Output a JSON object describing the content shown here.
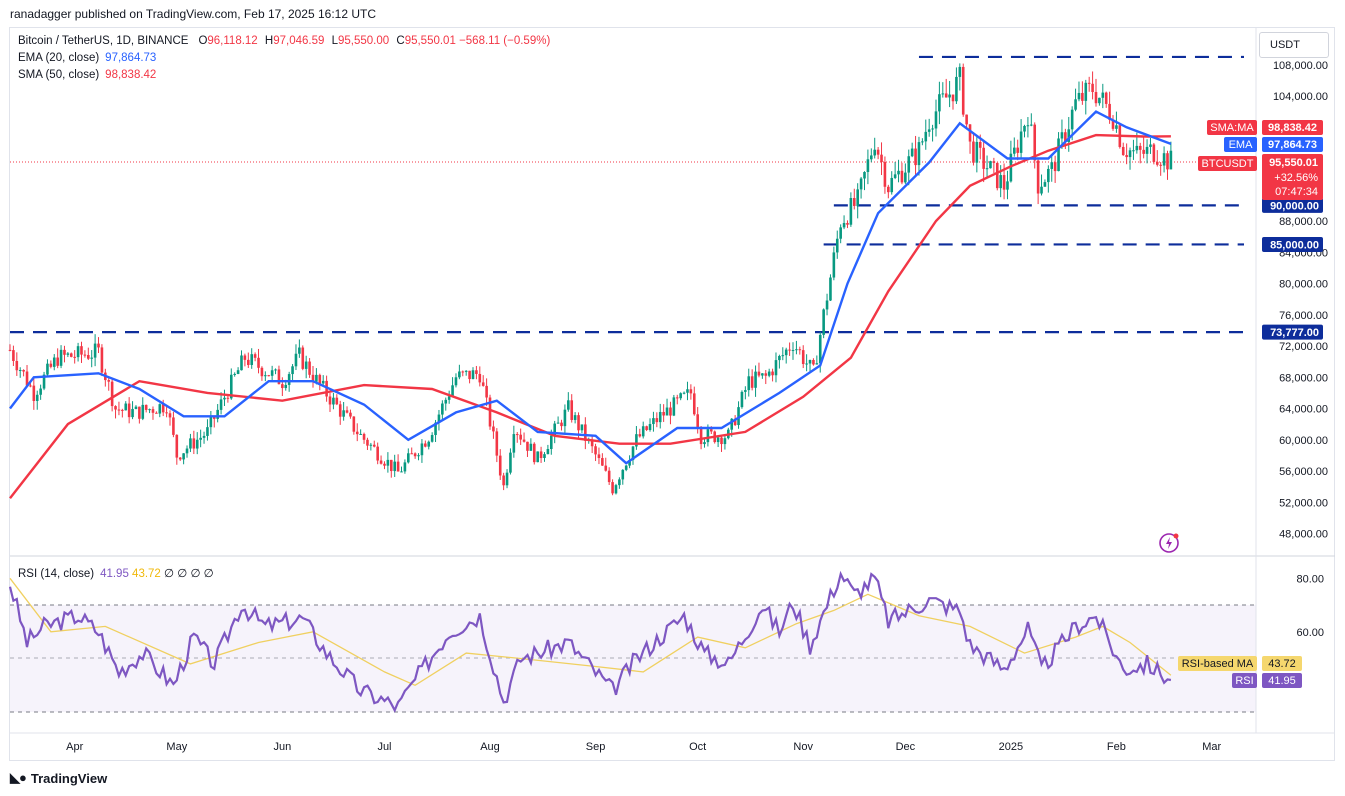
{
  "publisher": "ranadagger published on TradingView.com, Feb 17, 2025 16:12 UTC",
  "currency_button": "USDT",
  "legend": {
    "symbol": "Bitcoin / TetherUS, 1D, BINANCE",
    "o_key": "O",
    "o_val": "96,118.12",
    "h_key": "H",
    "h_val": "97,046.59",
    "l_key": "L",
    "l_val": "95,550.00",
    "c_key": "C",
    "c_val": "95,550.01",
    "change": "−568.11 (−0.59%)",
    "ema_label": "EMA (20, close)",
    "ema_val": "97,864.73",
    "sma_label": "SMA (50, close)",
    "sma_val": "98,838.42",
    "rsi_label": "RSI (14, close)",
    "rsi_val": "41.95",
    "rsi_ma_val": "43.72",
    "rsi_extra": "∅ ∅ ∅ ∅"
  },
  "colors": {
    "up": "#089981",
    "down": "#f23645",
    "ema": "#2962ff",
    "sma": "#f23645",
    "level": "#0d2d9b",
    "rsi": "#7e57c2",
    "rsi_ma": "#f0d060"
  },
  "price_axis": {
    "ticks": [
      "108,000.00",
      "104,000.00",
      "88,000.00",
      "84,000.00",
      "80,000.00",
      "76,000.00",
      "72,000.00",
      "68,000.00",
      "64,000.00",
      "60,000.00",
      "56,000.00",
      "52,000.00",
      "48,000.00"
    ],
    "tick_values": [
      108000,
      104000,
      88000,
      84000,
      80000,
      76000,
      72000,
      68000,
      64000,
      60000,
      56000,
      52000,
      48000
    ]
  },
  "level_labels": [
    {
      "value": 90000,
      "text": "90,000.00"
    },
    {
      "value": 85000,
      "text": "85,000.00"
    },
    {
      "value": 73777,
      "text": "73,777.00"
    }
  ],
  "top_level": 109000,
  "price_tags": {
    "sma_name": "SMA:MA",
    "sma_value": "98,838.42",
    "ema_name": "EMA",
    "ema_value": "97,864.73",
    "symbol_name": "BTCUSDT",
    "last": "95,550.01",
    "pct": "+32.56%",
    "countdown": "07:47:34"
  },
  "rsi_axis": {
    "ticks": [
      "80.00",
      "60.00"
    ],
    "tick_values": [
      80,
      60
    ]
  },
  "rsi_tags": {
    "ma_name": "RSI-based MA",
    "ma_value": "43.72",
    "rsi_name": "RSI",
    "rsi_value": "41.95"
  },
  "time_axis": [
    "Apr",
    "May",
    "Jun",
    "Jul",
    "Aug",
    "Sep",
    "Oct",
    "Nov",
    "Dec",
    "2025",
    "Feb",
    "Mar"
  ],
  "brand": "TradingView",
  "chart_data": {
    "type": "candlestick",
    "title": "Bitcoin / TetherUS, 1D, BINANCE",
    "x_range": [
      "2024-03-13",
      "2025-03-14"
    ],
    "ylim": [
      46000,
      110500
    ],
    "anchors": [
      [
        "2024-03-13",
        71500
      ],
      [
        "2024-03-20",
        66000
      ],
      [
        "2024-03-27",
        70500
      ],
      [
        "2024-04-08",
        71200
      ],
      [
        "2024-04-13",
        64000
      ],
      [
        "2024-04-19",
        63500
      ],
      [
        "2024-04-28",
        64500
      ],
      [
        "2024-05-01",
        58000
      ],
      [
        "2024-05-10",
        61000
      ],
      [
        "2024-05-15",
        65500
      ],
      [
        "2024-05-21",
        70500
      ],
      [
        "2024-06-01",
        67500
      ],
      [
        "2024-06-06",
        70700
      ],
      [
        "2024-06-12",
        67000
      ],
      [
        "2024-06-24",
        60500
      ],
      [
        "2024-07-05",
        55800
      ],
      [
        "2024-07-14",
        60500
      ],
      [
        "2024-07-22",
        68000
      ],
      [
        "2024-07-29",
        68500
      ],
      [
        "2024-08-05",
        54000
      ],
      [
        "2024-08-08",
        61800
      ],
      [
        "2024-08-15",
        57500
      ],
      [
        "2024-08-24",
        64000
      ],
      [
        "2024-09-01",
        58000
      ],
      [
        "2024-09-06",
        53800
      ],
      [
        "2024-09-13",
        60000
      ],
      [
        "2024-09-20",
        63000
      ],
      [
        "2024-09-29",
        66000
      ],
      [
        "2024-10-02",
        60500
      ],
      [
        "2024-10-10",
        60500
      ],
      [
        "2024-10-16",
        67500
      ],
      [
        "2024-10-21",
        68000
      ],
      [
        "2024-10-29",
        72500
      ],
      [
        "2024-11-04",
        68500
      ],
      [
        "2024-11-07",
        76000
      ],
      [
        "2024-11-12",
        88000
      ],
      [
        "2024-11-17",
        90500
      ],
      [
        "2024-11-22",
        98500
      ],
      [
        "2024-11-26",
        92500
      ],
      [
        "2024-12-05",
        97000
      ],
      [
        "2024-12-08",
        101000
      ],
      [
        "2024-12-17",
        106000
      ],
      [
        "2024-12-20",
        97500
      ],
      [
        "2024-12-30",
        92500
      ],
      [
        "2025-01-06",
        102000
      ],
      [
        "2025-01-09",
        92800
      ],
      [
        "2025-01-13",
        94500
      ],
      [
        "2025-01-20",
        103000
      ],
      [
        "2025-01-25",
        105000
      ],
      [
        "2025-01-31",
        101500
      ],
      [
        "2025-02-03",
        97500
      ],
      [
        "2025-02-07",
        96500
      ],
      [
        "2025-02-12",
        97000
      ],
      [
        "2025-02-17",
        95550
      ]
    ],
    "ema20": [
      [
        "2024-03-13",
        64000
      ],
      [
        "2024-03-20",
        68000
      ],
      [
        "2024-04-08",
        68500
      ],
      [
        "2024-04-20",
        66500
      ],
      [
        "2024-05-03",
        63000
      ],
      [
        "2024-05-15",
        63000
      ],
      [
        "2024-05-28",
        67500
      ],
      [
        "2024-06-10",
        67500
      ],
      [
        "2024-06-25",
        64500
      ],
      [
        "2024-07-08",
        60000
      ],
      [
        "2024-07-22",
        63500
      ],
      [
        "2024-08-03",
        65000
      ],
      [
        "2024-08-15",
        61000
      ],
      [
        "2024-09-01",
        60500
      ],
      [
        "2024-09-10",
        57000
      ],
      [
        "2024-09-25",
        61500
      ],
      [
        "2024-10-08",
        61500
      ],
      [
        "2024-10-25",
        66000
      ],
      [
        "2024-11-06",
        69500
      ],
      [
        "2024-11-14",
        80000
      ],
      [
        "2024-11-23",
        89000
      ],
      [
        "2024-12-08",
        95500
      ],
      [
        "2024-12-17",
        100500
      ],
      [
        "2024-12-31",
        96000
      ],
      [
        "2025-01-12",
        96000
      ],
      [
        "2025-01-26",
        102000
      ],
      [
        "2025-02-04",
        100000
      ],
      [
        "2025-02-17",
        97864.73
      ]
    ],
    "sma50": [
      [
        "2024-03-13",
        52500
      ],
      [
        "2024-03-30",
        62000
      ],
      [
        "2024-04-20",
        67500
      ],
      [
        "2024-05-10",
        66000
      ],
      [
        "2024-06-01",
        65000
      ],
      [
        "2024-06-25",
        67000
      ],
      [
        "2024-07-15",
        66500
      ],
      [
        "2024-08-03",
        63500
      ],
      [
        "2024-08-20",
        60500
      ],
      [
        "2024-09-08",
        59500
      ],
      [
        "2024-09-23",
        59500
      ],
      [
        "2024-10-15",
        61000
      ],
      [
        "2024-11-01",
        65500
      ],
      [
        "2024-11-15",
        70500
      ],
      [
        "2024-11-26",
        79000
      ],
      [
        "2024-12-10",
        88000
      ],
      [
        "2024-12-20",
        92500
      ],
      [
        "2025-01-01",
        95000
      ],
      [
        "2025-01-12",
        97000
      ],
      [
        "2025-01-26",
        99000
      ],
      [
        "2025-02-10",
        98800
      ],
      [
        "2025-02-17",
        98838.42
      ]
    ],
    "levels": [
      109000,
      90000,
      85000,
      73777
    ],
    "last_price": 95550.01,
    "rsi": [
      [
        "2024-03-13",
        78
      ],
      [
        "2024-03-18",
        56
      ],
      [
        "2024-03-23",
        62
      ],
      [
        "2024-04-02",
        66
      ],
      [
        "2024-04-08",
        60
      ],
      [
        "2024-04-14",
        45
      ],
      [
        "2024-04-21",
        52
      ],
      [
        "2024-04-30",
        40
      ],
      [
        "2024-05-06",
        58
      ],
      [
        "2024-05-12",
        48
      ],
      [
        "2024-05-20",
        70
      ],
      [
        "2024-05-27",
        62
      ],
      [
        "2024-06-07",
        65
      ],
      [
        "2024-06-14",
        52
      ],
      [
        "2024-06-24",
        38
      ],
      [
        "2024-07-05",
        32
      ],
      [
        "2024-07-10",
        42
      ],
      [
        "2024-07-20",
        60
      ],
      [
        "2024-07-29",
        66
      ],
      [
        "2024-08-05",
        34
      ],
      [
        "2024-08-10",
        50
      ],
      [
        "2024-08-24",
        56
      ],
      [
        "2024-09-06",
        38
      ],
      [
        "2024-09-13",
        50
      ],
      [
        "2024-09-27",
        66
      ],
      [
        "2024-10-03",
        52
      ],
      [
        "2024-10-10",
        48
      ],
      [
        "2024-10-20",
        70
      ],
      [
        "2024-10-25",
        60
      ],
      [
        "2024-10-29",
        71
      ],
      [
        "2024-11-03",
        55
      ],
      [
        "2024-11-12",
        82
      ],
      [
        "2024-11-16",
        74
      ],
      [
        "2024-11-22",
        80
      ],
      [
        "2024-11-26",
        64
      ],
      [
        "2024-12-08",
        72
      ],
      [
        "2024-12-17",
        68
      ],
      [
        "2024-12-20",
        55
      ],
      [
        "2024-12-30",
        46
      ],
      [
        "2025-01-06",
        61
      ],
      [
        "2025-01-10",
        46
      ],
      [
        "2025-01-20",
        62
      ],
      [
        "2025-01-26",
        66
      ],
      [
        "2025-02-03",
        46
      ],
      [
        "2025-02-10",
        48
      ],
      [
        "2025-02-17",
        41.95
      ]
    ],
    "rsi_ma": [
      [
        "2024-03-13",
        80
      ],
      [
        "2024-03-25",
        60
      ],
      [
        "2024-04-10",
        62
      ],
      [
        "2024-05-05",
        48
      ],
      [
        "2024-05-25",
        56
      ],
      [
        "2024-06-10",
        60
      ],
      [
        "2024-07-01",
        45
      ],
      [
        "2024-07-10",
        40
      ],
      [
        "2024-07-25",
        52
      ],
      [
        "2024-08-10",
        50
      ],
      [
        "2024-09-01",
        47
      ],
      [
        "2024-09-15",
        45
      ],
      [
        "2024-10-01",
        58
      ],
      [
        "2024-10-15",
        54
      ],
      [
        "2024-10-30",
        63
      ],
      [
        "2024-11-10",
        68
      ],
      [
        "2024-11-20",
        74
      ],
      [
        "2024-12-05",
        66
      ],
      [
        "2024-12-20",
        62
      ],
      [
        "2025-01-05",
        52
      ],
      [
        "2025-01-20",
        58
      ],
      [
        "2025-01-28",
        62
      ],
      [
        "2025-02-05",
        56
      ],
      [
        "2025-02-17",
        43.72
      ]
    ],
    "rsi_ylim": [
      30,
      88
    ],
    "rsi_bands": [
      70,
      50,
      30
    ]
  }
}
